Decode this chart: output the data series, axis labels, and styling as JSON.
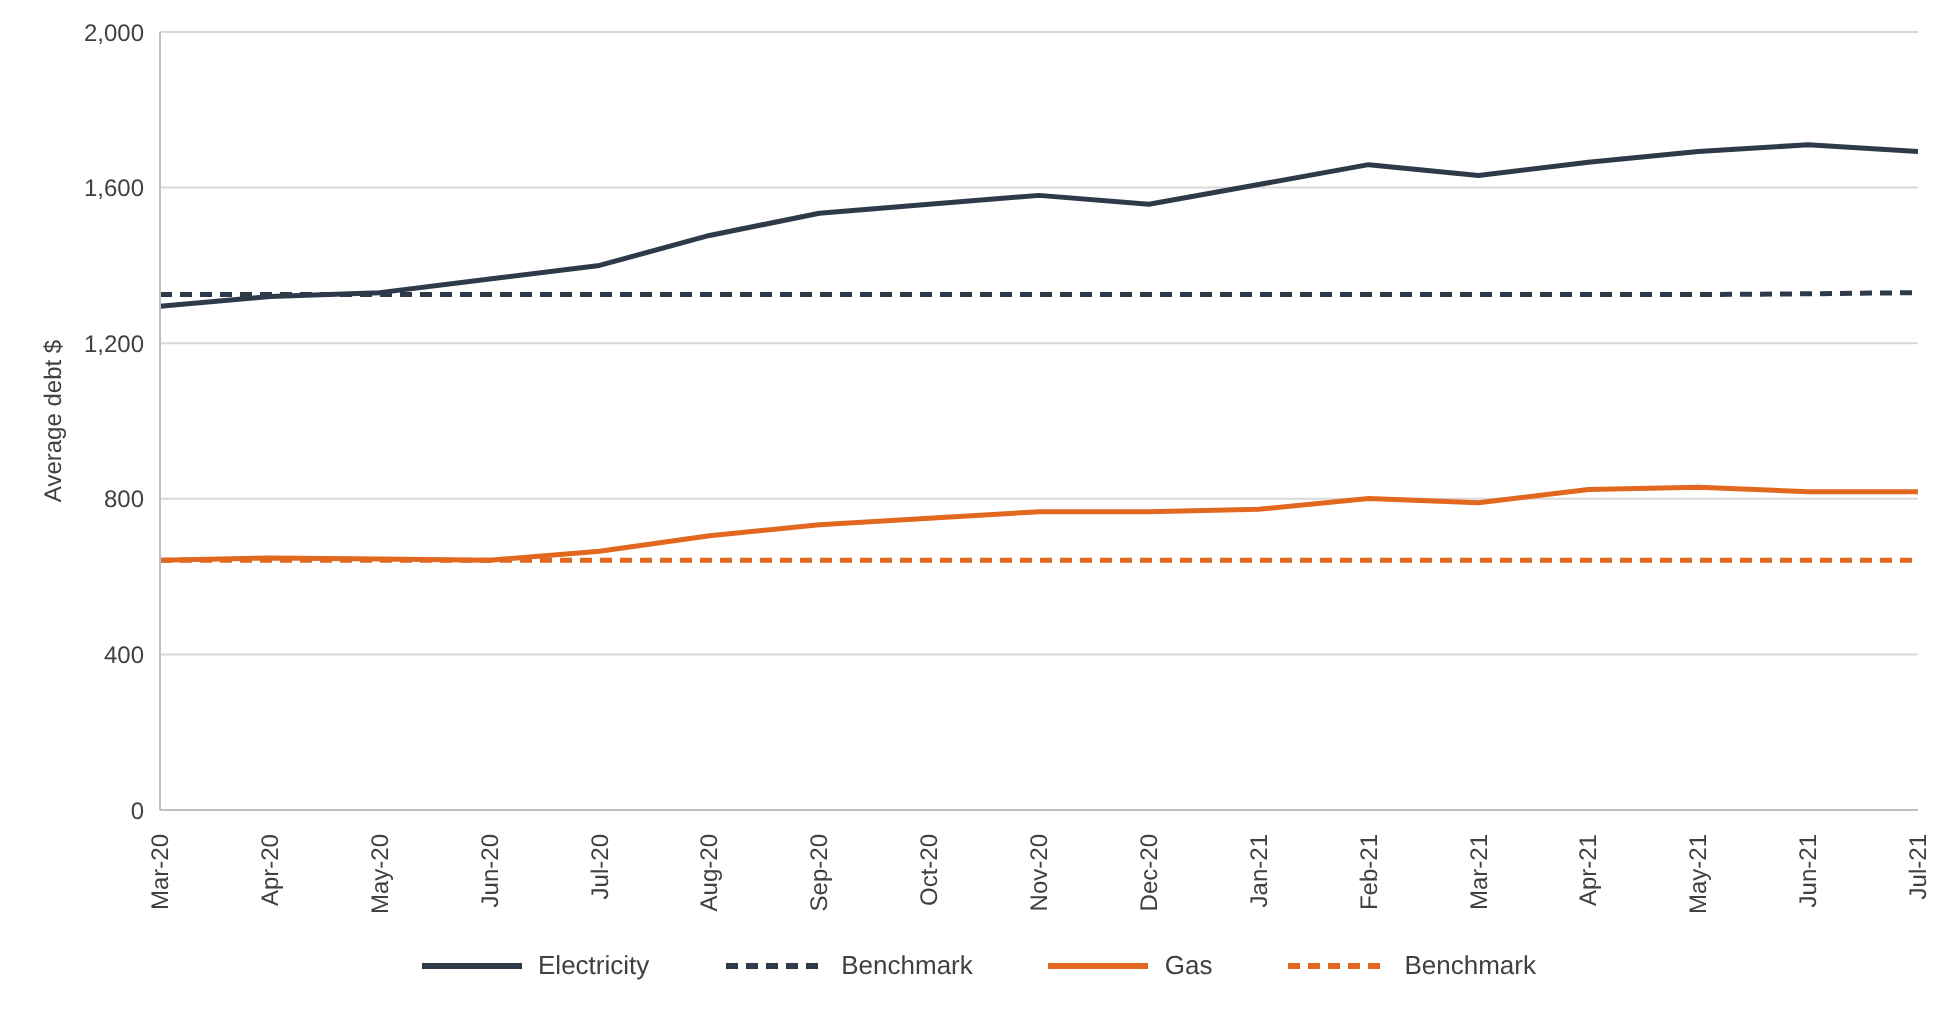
{
  "chart_data": {
    "type": "line",
    "ylabel": "Average debt $",
    "categories": [
      "Mar-20",
      "Apr-20",
      "May-20",
      "Jun-20",
      "Jul-20",
      "Aug-20",
      "Sep-20",
      "Oct-20",
      "Nov-20",
      "Dec-20",
      "Jan-21",
      "Feb-21",
      "Mar-21",
      "Apr-21",
      "May-21",
      "Jun-21",
      "Jul-21"
    ],
    "series": [
      {
        "name": "Electricity",
        "color": "#2e3a4a",
        "line_style": "solid",
        "values": [
          1295,
          1320,
          1330,
          1365,
          1400,
          1477,
          1534,
          1557,
          1580,
          1557,
          1608,
          1659,
          1631,
          1665,
          1693,
          1710,
          1693
        ]
      },
      {
        "name": "Benchmark",
        "color": "#2e3a4a",
        "line_style": "dashed",
        "values": [
          1325,
          1325,
          1325,
          1325,
          1325,
          1325,
          1325,
          1325,
          1325,
          1325,
          1325,
          1325,
          1325,
          1325,
          1325,
          1327,
          1330
        ]
      },
      {
        "name": "Gas",
        "color": "#e2681f",
        "line_style": "solid",
        "values": [
          642,
          648,
          645,
          642,
          665,
          705,
          733,
          750,
          767,
          767,
          773,
          801,
          790,
          824,
          830,
          818,
          818
        ]
      },
      {
        "name": "Benchmark",
        "color": "#e2681f",
        "line_style": "dashed",
        "values": [
          642,
          642,
          642,
          642,
          642,
          642,
          642,
          642,
          642,
          642,
          642,
          642,
          642,
          642,
          642,
          642,
          642
        ]
      }
    ],
    "ylim": [
      0,
      2000
    ],
    "yticks": [
      0,
      400,
      800,
      {
        "value": 1200,
        "label": "1,200"
      },
      {
        "value": 1600,
        "label": "1,600"
      },
      {
        "value": 2000,
        "label": "2,000"
      }
    ],
    "grid": "y",
    "legend": "bottom",
    "marker": "none"
  }
}
